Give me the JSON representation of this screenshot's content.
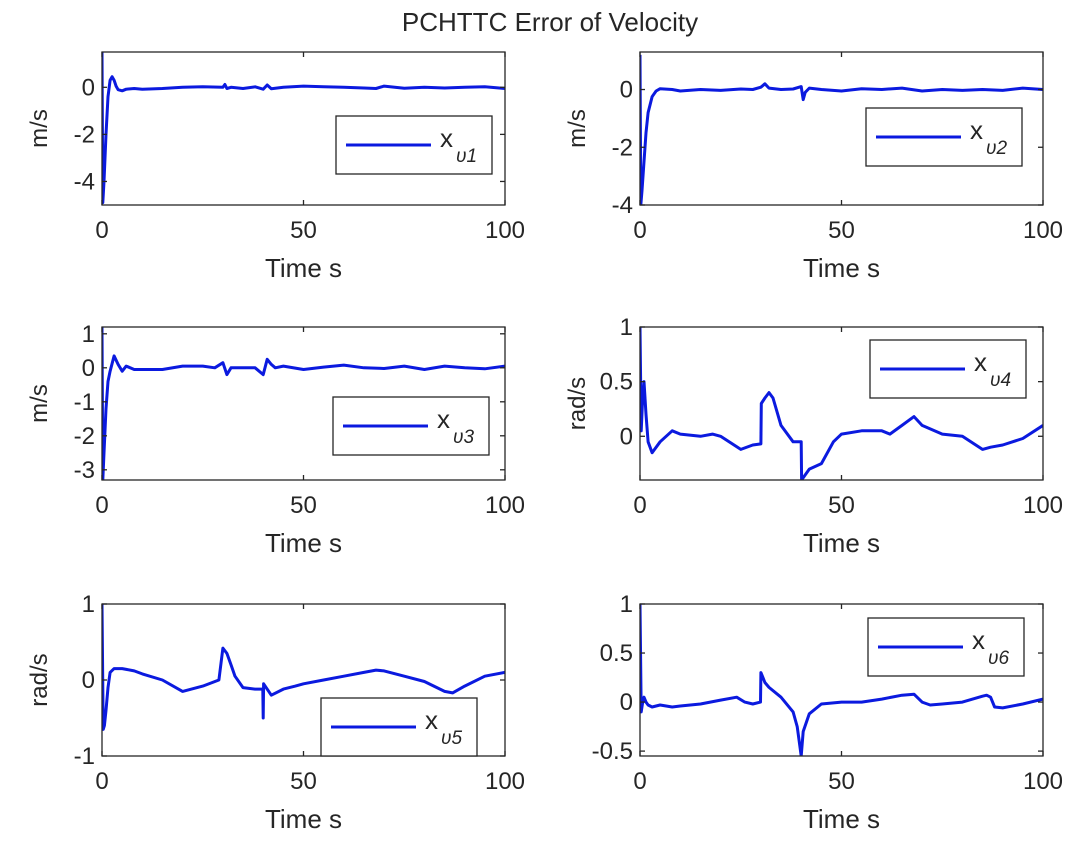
{
  "figure_title": "PCHTTC Error of Velocity",
  "colors": {
    "series": "#0b1adf",
    "axis": "#262626",
    "background": "#ffffff"
  },
  "chart_data": [
    {
      "type": "line",
      "id": "v1",
      "ylabel": "m/s",
      "xlabel": "Time s",
      "xlim": [
        0,
        100
      ],
      "ylim": [
        -5,
        1.5
      ],
      "xticks": [
        0,
        50,
        100
      ],
      "xticklabels": [
        "0",
        "50",
        "100"
      ],
      "yticks": [
        -4,
        -2,
        0
      ],
      "yticklabels": [
        "-4",
        "-2",
        "0"
      ],
      "legend": {
        "base": "x",
        "sub": "υ1",
        "position": "right-center"
      },
      "x": [
        0,
        0.2,
        0.5,
        1,
        1.5,
        2,
        2.5,
        3,
        3.5,
        4,
        5,
        6,
        8,
        10,
        15,
        20,
        25,
        30,
        30.5,
        31,
        32,
        35,
        38,
        40,
        41,
        42,
        45,
        50,
        55,
        60,
        65,
        68,
        70,
        75,
        80,
        85,
        90,
        95,
        100
      ],
      "series": [
        {
          "name": "x_υ1",
          "values": [
            1.5,
            -4.9,
            -4.0,
            -2.0,
            -0.4,
            0.3,
            0.45,
            0.3,
            0.05,
            -0.1,
            -0.15,
            -0.08,
            -0.05,
            -0.08,
            -0.05,
            0.0,
            0.02,
            0.0,
            0.12,
            -0.05,
            0.0,
            -0.05,
            0.02,
            -0.08,
            0.1,
            -0.06,
            0.0,
            0.05,
            0.02,
            0.0,
            -0.03,
            -0.05,
            0.05,
            -0.04,
            0.0,
            -0.03,
            0.0,
            0.02,
            -0.05
          ]
        }
      ]
    },
    {
      "type": "line",
      "id": "v2",
      "ylabel": "m/s",
      "xlabel": "Time s",
      "xlim": [
        0,
        100
      ],
      "ylim": [
        -4,
        1.3
      ],
      "xticks": [
        0,
        50,
        100
      ],
      "xticklabels": [
        "0",
        "50",
        "100"
      ],
      "yticks": [
        -4,
        -2,
        0
      ],
      "yticklabels": [
        "-4",
        "-2",
        "0"
      ],
      "legend": {
        "base": "x",
        "sub": "υ2",
        "position": "top-right"
      },
      "x": [
        0,
        0.2,
        0.5,
        1,
        1.5,
        2,
        3,
        4,
        5,
        8,
        10,
        15,
        20,
        25,
        28,
        30,
        31,
        32,
        35,
        38,
        40,
        40.5,
        41,
        42,
        45,
        50,
        55,
        60,
        65,
        70,
        75,
        80,
        85,
        90,
        95,
        100
      ],
      "series": [
        {
          "name": "x_υ2",
          "values": [
            1.2,
            -4.0,
            -3.5,
            -2.5,
            -1.5,
            -0.8,
            -0.25,
            -0.05,
            0.03,
            0.0,
            -0.05,
            0.0,
            -0.03,
            0.02,
            0.0,
            0.08,
            0.2,
            0.05,
            0.0,
            0.02,
            0.1,
            -0.35,
            -0.1,
            0.05,
            0.0,
            -0.05,
            0.03,
            0.0,
            0.05,
            -0.05,
            0.0,
            -0.03,
            0.0,
            -0.03,
            0.05,
            0.0
          ]
        }
      ]
    },
    {
      "type": "line",
      "id": "v3",
      "ylabel": "m/s",
      "xlabel": "Time s",
      "xlim": [
        0,
        100
      ],
      "ylim": [
        -3.3,
        1.2
      ],
      "xticks": [
        0,
        50,
        100
      ],
      "xticklabels": [
        "0",
        "50",
        "100"
      ],
      "yticks": [
        -3,
        -2,
        -1,
        0,
        1
      ],
      "yticklabels": [
        "-3",
        "-2",
        "-1",
        "0",
        "1"
      ],
      "legend": {
        "base": "x",
        "sub": "υ3",
        "position": "bottom-right"
      },
      "x": [
        0,
        0.2,
        0.5,
        1,
        1.5,
        2,
        3,
        4,
        5,
        6,
        8,
        10,
        15,
        20,
        25,
        28,
        30,
        31,
        32,
        35,
        38,
        40,
        41,
        42,
        43,
        45,
        50,
        55,
        60,
        65,
        70,
        75,
        80,
        85,
        90,
        95,
        100
      ],
      "series": [
        {
          "name": "x_υ3",
          "values": [
            1.2,
            -3.3,
            -2.5,
            -1.2,
            -0.4,
            -0.1,
            0.35,
            0.1,
            -0.1,
            0.05,
            -0.05,
            -0.05,
            -0.05,
            0.05,
            0.05,
            0.0,
            0.15,
            -0.2,
            0.0,
            0.0,
            0.0,
            -0.2,
            0.25,
            0.1,
            0.0,
            0.05,
            -0.05,
            0.02,
            0.08,
            0.0,
            -0.02,
            0.05,
            -0.05,
            0.05,
            0.0,
            -0.03,
            0.05
          ]
        }
      ]
    },
    {
      "type": "line",
      "id": "v4",
      "ylabel": "rad/s",
      "xlabel": "Time s",
      "xlim": [
        0,
        100
      ],
      "ylim": [
        -0.4,
        1.0
      ],
      "xticks": [
        0,
        50,
        100
      ],
      "xticklabels": [
        "0",
        "50",
        "100"
      ],
      "yticks": [
        0,
        0.5,
        1
      ],
      "yticklabels": [
        "0",
        "0.5",
        "1"
      ],
      "legend": {
        "base": "x",
        "sub": "υ4",
        "position": "top-right"
      },
      "x": [
        0,
        0.3,
        0.6,
        1,
        1.5,
        2,
        3,
        5,
        8,
        10,
        15,
        18,
        20,
        25,
        28,
        30,
        30.1,
        31,
        32,
        33,
        35,
        38,
        39.9,
        40,
        40.1,
        42,
        45,
        48,
        50,
        55,
        60,
        62,
        65,
        68,
        70,
        75,
        80,
        85,
        87,
        90,
        95,
        100
      ],
      "series": [
        {
          "name": "x_υ4",
          "values": [
            1.0,
            0.05,
            0.3,
            0.5,
            0.2,
            -0.05,
            -0.15,
            -0.05,
            0.05,
            0.02,
            0.0,
            0.02,
            0.0,
            -0.12,
            -0.08,
            -0.07,
            0.3,
            0.35,
            0.4,
            0.35,
            0.1,
            -0.05,
            -0.05,
            -0.05,
            -0.4,
            -0.3,
            -0.25,
            -0.05,
            0.02,
            0.05,
            0.05,
            0.02,
            0.1,
            0.18,
            0.1,
            0.02,
            0.0,
            -0.12,
            -0.1,
            -0.08,
            -0.02,
            0.1
          ]
        }
      ]
    },
    {
      "type": "line",
      "id": "v5",
      "ylabel": "rad/s",
      "xlabel": "Time s",
      "xlim": [
        0,
        100
      ],
      "ylim": [
        -1,
        1
      ],
      "xticks": [
        0,
        50,
        100
      ],
      "xticklabels": [
        "0",
        "50",
        "100"
      ],
      "yticks": [
        -1,
        0,
        1
      ],
      "yticklabels": [
        "-1",
        "0",
        "1"
      ],
      "legend": {
        "base": "x",
        "sub": "υ5",
        "position": "bottom-right"
      },
      "x": [
        0,
        0.3,
        0.6,
        1,
        1.5,
        2,
        3,
        5,
        8,
        10,
        15,
        20,
        25,
        29,
        30,
        31,
        32,
        33,
        35,
        38,
        39.9,
        40,
        40.1,
        42,
        45,
        48,
        50,
        55,
        60,
        65,
        68,
        70,
        75,
        80,
        85,
        87,
        90,
        95,
        100
      ],
      "series": [
        {
          "name": "x_υ5",
          "values": [
            1.0,
            -0.65,
            -0.6,
            -0.4,
            -0.1,
            0.1,
            0.15,
            0.15,
            0.12,
            0.08,
            0.0,
            -0.15,
            -0.08,
            0.0,
            0.42,
            0.35,
            0.2,
            0.05,
            -0.1,
            -0.12,
            -0.12,
            -0.5,
            -0.05,
            -0.2,
            -0.12,
            -0.08,
            -0.05,
            0.0,
            0.05,
            0.1,
            0.13,
            0.12,
            0.05,
            -0.02,
            -0.15,
            -0.17,
            -0.08,
            0.05,
            0.1
          ]
        }
      ]
    },
    {
      "type": "line",
      "id": "v6",
      "ylabel": "",
      "xlabel": "Time s",
      "xlim": [
        0,
        100
      ],
      "ylim": [
        -0.55,
        1.0
      ],
      "xticks": [
        0,
        50,
        100
      ],
      "xticklabels": [
        "0",
        "50",
        "100"
      ],
      "yticks": [
        -0.5,
        0,
        0.5,
        1
      ],
      "yticklabels": [
        "-0.5",
        "0",
        "0.5",
        "1"
      ],
      "legend": {
        "base": "x",
        "sub": "υ6",
        "position": "top-right"
      },
      "x": [
        0,
        0.3,
        0.6,
        1,
        1.5,
        2,
        3,
        5,
        8,
        10,
        15,
        20,
        24,
        26,
        28,
        29.9,
        30,
        30.5,
        31,
        32,
        35,
        38,
        39,
        40,
        40.5,
        42,
        45,
        50,
        55,
        60,
        65,
        68,
        70,
        72,
        75,
        80,
        85,
        86,
        87,
        88,
        90,
        95,
        100
      ],
      "series": [
        {
          "name": "x_υ6",
          "values": [
            1.0,
            -0.1,
            -0.02,
            0.05,
            0.0,
            -0.03,
            -0.05,
            -0.03,
            -0.05,
            -0.04,
            -0.02,
            0.02,
            0.05,
            0.0,
            -0.02,
            0.0,
            0.3,
            0.25,
            0.2,
            0.15,
            0.05,
            -0.1,
            -0.25,
            -0.55,
            -0.3,
            -0.12,
            -0.02,
            0.0,
            0.0,
            0.03,
            0.07,
            0.08,
            0.0,
            -0.03,
            -0.02,
            0.0,
            0.06,
            0.07,
            0.05,
            -0.05,
            -0.06,
            -0.02,
            0.03
          ]
        }
      ]
    }
  ]
}
